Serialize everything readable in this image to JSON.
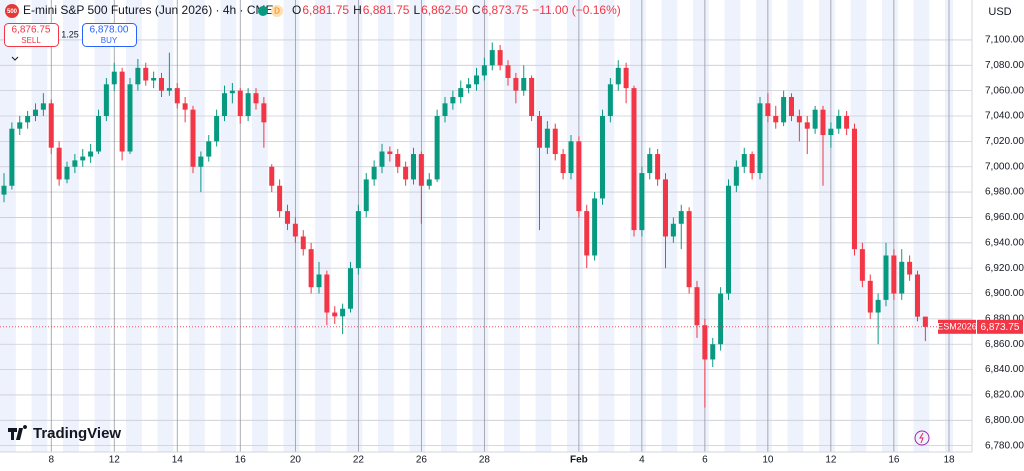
{
  "header": {
    "badge": "500",
    "title": "E-mini S&P 500 Futures (Jun 2026) · 4h · CME",
    "flag": "D",
    "ohlc": [
      {
        "key": "O",
        "value": "6,881.75"
      },
      {
        "key": "H",
        "value": "6,881.75"
      },
      {
        "key": "L",
        "value": "6,862.50"
      },
      {
        "key": "C",
        "value": "6,873.75"
      }
    ],
    "change": "−11.00 (−0.16%)"
  },
  "trade": {
    "sell_price": "6,876.75",
    "sell": "SELL",
    "spread": "1.25",
    "buy_price": "6,878.00",
    "buy": "BUY"
  },
  "currency": "USD",
  "brand": "TradingView",
  "chart_data": {
    "type": "candlestick",
    "categories": [
      null,
      null,
      null,
      null,
      null,
      null,
      "8",
      null,
      null,
      null,
      null,
      null,
      null,
      null,
      "12",
      null,
      null,
      null,
      null,
      null,
      null,
      null,
      "14",
      null,
      null,
      null,
      null,
      null,
      null,
      null,
      "16",
      null,
      null,
      null,
      null,
      null,
      null,
      "20",
      null,
      null,
      null,
      null,
      null,
      null,
      null,
      "22",
      null,
      null,
      null,
      null,
      null,
      null,
      null,
      "26",
      null,
      null,
      null,
      null,
      null,
      null,
      null,
      "28",
      null,
      null,
      null,
      null,
      null,
      null,
      null,
      null,
      null,
      null,
      null,
      "Feb",
      null,
      null,
      null,
      null,
      null,
      null,
      null,
      "4",
      null,
      null,
      null,
      null,
      null,
      null,
      null,
      "6",
      null,
      null,
      null,
      null,
      null,
      null,
      null,
      "10",
      null,
      null,
      null,
      null,
      null,
      null,
      null,
      "12",
      null,
      null,
      null,
      null,
      null,
      null,
      null,
      "16",
      null,
      null,
      null,
      null,
      null,
      null,
      "18"
    ],
    "candles": [
      [
        6978,
        6995,
        6972,
        6985
      ],
      [
        6985,
        7035,
        6982,
        7030
      ],
      [
        7030,
        7040,
        7025,
        7035
      ],
      [
        7035,
        7044,
        7030,
        7040
      ],
      [
        7040,
        7050,
        7036,
        7045
      ],
      [
        7045,
        7058,
        7040,
        7050
      ],
      [
        7050,
        7053,
        7010,
        7015
      ],
      [
        7015,
        7020,
        6985,
        6990
      ],
      [
        6990,
        7004,
        6987,
        7000
      ],
      [
        7000,
        7010,
        6995,
        7005
      ],
      [
        7005,
        7014,
        7000,
        7008
      ],
      [
        7008,
        7018,
        7003,
        7012
      ],
      [
        7012,
        7045,
        7010,
        7040
      ],
      [
        7040,
        7070,
        7036,
        7065
      ],
      [
        7065,
        7082,
        7060,
        7075
      ],
      [
        7075,
        7078,
        7005,
        7012
      ],
      [
        7012,
        7070,
        7010,
        7065
      ],
      [
        7065,
        7085,
        7060,
        7078
      ],
      [
        7078,
        7082,
        7064,
        7068
      ],
      [
        7068,
        7075,
        7062,
        7070
      ],
      [
        7070,
        7074,
        7055,
        7060
      ],
      [
        7060,
        7090,
        7056,
        7062
      ],
      [
        7062,
        7066,
        7046,
        7050
      ],
      [
        7050,
        7055,
        7035,
        7045
      ],
      [
        7045,
        7048,
        6995,
        7000
      ],
      [
        7000,
        7012,
        6980,
        7008
      ],
      [
        7008,
        7025,
        7004,
        7020
      ],
      [
        7020,
        7045,
        7016,
        7040
      ],
      [
        7040,
        7064,
        7036,
        7058
      ],
      [
        7058,
        7066,
        7050,
        7060
      ],
      [
        7060,
        7062,
        7034,
        7040
      ],
      [
        7040,
        7062,
        7036,
        7058
      ],
      [
        7058,
        7062,
        7045,
        7050
      ],
      [
        7050,
        7055,
        7015,
        7035
      ],
      [
        7000,
        7002,
        6980,
        6985
      ],
      [
        6985,
        6990,
        6960,
        6965
      ],
      [
        6965,
        6970,
        6950,
        6955
      ],
      [
        6955,
        6960,
        6940,
        6945
      ],
      [
        6945,
        6950,
        6930,
        6935
      ],
      [
        6935,
        6940,
        6900,
        6905
      ],
      [
        6905,
        6925,
        6900,
        6915
      ],
      [
        6915,
        6918,
        6875,
        6885
      ],
      [
        6885,
        6890,
        6876,
        6882
      ],
      [
        6882,
        6892,
        6868,
        6888
      ],
      [
        6888,
        6925,
        6885,
        6920
      ],
      [
        6920,
        6970,
        6915,
        6965
      ],
      [
        6965,
        6995,
        6960,
        6990
      ],
      [
        6990,
        7005,
        6985,
        7000
      ],
      [
        7000,
        7018,
        6995,
        7012
      ],
      [
        7012,
        7016,
        7004,
        7010
      ],
      [
        7010,
        7014,
        6995,
        7000
      ],
      [
        7000,
        7004,
        6985,
        6990
      ],
      [
        6990,
        7015,
        6986,
        7010
      ],
      [
        7010,
        7012,
        6955,
        6985
      ],
      [
        6985,
        6995,
        6982,
        6990
      ],
      [
        6990,
        7045,
        6988,
        7040
      ],
      [
        7040,
        7055,
        7035,
        7050
      ],
      [
        7050,
        7060,
        7045,
        7055
      ],
      [
        7055,
        7068,
        7050,
        7062
      ],
      [
        7062,
        7070,
        7058,
        7065
      ],
      [
        7065,
        7078,
        7060,
        7072
      ],
      [
        7072,
        7086,
        7068,
        7080
      ],
      [
        7080,
        7098,
        7076,
        7092
      ],
      [
        7092,
        7096,
        7076,
        7080
      ],
      [
        7080,
        7084,
        7064,
        7070
      ],
      [
        7070,
        7074,
        7050,
        7060
      ],
      [
        7060,
        7080,
        7056,
        7070
      ],
      [
        7070,
        7072,
        7036,
        7040
      ],
      [
        7040,
        7044,
        6950,
        7015
      ],
      [
        7015,
        7036,
        7010,
        7030
      ],
      [
        7030,
        7034,
        7005,
        7010
      ],
      [
        7010,
        7014,
        6990,
        6995
      ],
      [
        6995,
        7025,
        6990,
        7020
      ],
      [
        7020,
        7024,
        6960,
        6965
      ],
      [
        6965,
        6970,
        6920,
        6930
      ],
      [
        6930,
        6980,
        6926,
        6975
      ],
      [
        6975,
        7045,
        6970,
        7040
      ],
      [
        7040,
        7070,
        7035,
        7065
      ],
      [
        7065,
        7084,
        7060,
        7078
      ],
      [
        7078,
        7082,
        7050,
        7062
      ],
      [
        7062,
        7064,
        6945,
        6950
      ],
      [
        6950,
        7000,
        6945,
        6995
      ],
      [
        6995,
        7015,
        6990,
        7010
      ],
      [
        7010,
        7014,
        6985,
        6990
      ],
      [
        6990,
        6995,
        6920,
        6945
      ],
      [
        6945,
        6960,
        6940,
        6955
      ],
      [
        6955,
        6970,
        6935,
        6965
      ],
      [
        6965,
        6968,
        6900,
        6905
      ],
      [
        6905,
        6910,
        6865,
        6875
      ],
      [
        6875,
        6880,
        6810,
        6848
      ],
      [
        6848,
        6865,
        6842,
        6860
      ],
      [
        6860,
        6905,
        6855,
        6900
      ],
      [
        6900,
        6990,
        6895,
        6985
      ],
      [
        6985,
        7005,
        6980,
        7000
      ],
      [
        7000,
        7015,
        6995,
        7010
      ],
      [
        7010,
        7012,
        6990,
        6995
      ],
      [
        6995,
        7055,
        6990,
        7050
      ],
      [
        7050,
        7058,
        7035,
        7040
      ],
      [
        7040,
        7048,
        7030,
        7035
      ],
      [
        7035,
        7060,
        7032,
        7055
      ],
      [
        7055,
        7058,
        7036,
        7040
      ],
      [
        7040,
        7045,
        7020,
        7035
      ],
      [
        7035,
        7040,
        7010,
        7030
      ],
      [
        7030,
        7048,
        7026,
        7045
      ],
      [
        7045,
        7048,
        6985,
        7025
      ],
      [
        7025,
        7035,
        7015,
        7030
      ],
      [
        7030,
        7045,
        7026,
        7040
      ],
      [
        7040,
        7044,
        7025,
        7030
      ],
      [
        7030,
        7034,
        6930,
        6935
      ],
      [
        6935,
        6940,
        6905,
        6910
      ],
      [
        6910,
        6915,
        6880,
        6885
      ],
      [
        6885,
        6900,
        6860,
        6895
      ],
      [
        6895,
        6940,
        6890,
        6930
      ],
      [
        6930,
        6935,
        6895,
        6900
      ],
      [
        6900,
        6935,
        6895,
        6925
      ],
      [
        6925,
        6930,
        6910,
        6915
      ],
      [
        6915,
        6918,
        6878,
        6881.75
      ],
      [
        6881.75,
        6881.75,
        6862.5,
        6873.75
      ],
      null,
      null,
      null
    ],
    "up_color": "#089981",
    "down_color": "#f23645",
    "ylim": [
      6775,
      7131.5
    ],
    "yticks": [
      {
        "value": 6780,
        "label": "6,780.00"
      },
      {
        "value": 6800,
        "label": "6,800.00"
      },
      {
        "value": 6820,
        "label": "6,820.00"
      },
      {
        "value": 6840,
        "label": "6,840.00"
      },
      {
        "value": 6860,
        "label": "6,860.00"
      },
      {
        "value": 6880,
        "label": "6,880.00"
      },
      {
        "value": 6900,
        "label": "6,900.00"
      },
      {
        "value": 6920,
        "label": "6,920.00"
      },
      {
        "value": 6940,
        "label": "6,940.00"
      },
      {
        "value": 6960,
        "label": "6,960.00"
      },
      {
        "value": 6980,
        "label": "6,980.00"
      },
      {
        "value": 7000,
        "label": "7,000.00"
      },
      {
        "value": 7020,
        "label": "7,020.00"
      },
      {
        "value": 7040,
        "label": "7,040.00"
      },
      {
        "value": 7060,
        "label": "7,060.00"
      },
      {
        "value": 7080,
        "label": "7,080.00"
      },
      {
        "value": 7100,
        "label": "7,100.00"
      }
    ],
    "grid": true,
    "last_price": {
      "symbol": "ESM2026",
      "value": 6873.75,
      "label": "6,873.75"
    }
  }
}
